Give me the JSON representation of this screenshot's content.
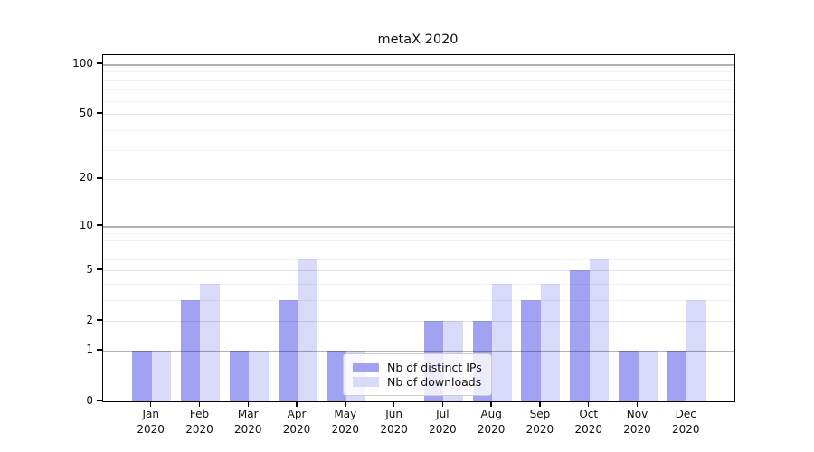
{
  "title": "metaX 2020",
  "chart_data": {
    "type": "bar",
    "title": "metaX 2020",
    "categories": [
      "Jan 2020",
      "Feb 2020",
      "Mar 2020",
      "Apr 2020",
      "May 2020",
      "Jun 2020",
      "Jul 2020",
      "Aug 2020",
      "Sep 2020",
      "Oct 2020",
      "Nov 2020",
      "Dec 2020"
    ],
    "series": [
      {
        "name": "Nb of distinct IPs",
        "color": "#a2a2f2",
        "values": [
          1,
          3,
          1,
          3,
          1,
          0,
          2,
          2,
          3,
          5,
          1,
          1
        ]
      },
      {
        "name": "Nb of downloads",
        "color": "#d9d9f9",
        "values": [
          1,
          4,
          1,
          6,
          1,
          0,
          2,
          4,
          4,
          6,
          1,
          3
        ]
      }
    ],
    "yscale": "log1p",
    "ylim": [
      0,
      113
    ],
    "yticks": [
      0,
      1,
      2,
      5,
      10,
      20,
      50,
      100
    ],
    "minor_gridlines": [
      3,
      4,
      6,
      7,
      8,
      9,
      30,
      40,
      60,
      70,
      80,
      90
    ],
    "grid": "horizontal",
    "legend_position": "lower-center",
    "xlabel": "",
    "ylabel": ""
  },
  "colors": {
    "series1": "#a2a2f2",
    "series2": "#d9d9f9",
    "grid_major_dark": "rgba(0,0,0,0.30)",
    "grid_major_light": "rgba(0,0,0,0.10)",
    "grid_minor": "rgba(0,0,0,0.05)",
    "spine": "#000000",
    "text": "#111111"
  }
}
